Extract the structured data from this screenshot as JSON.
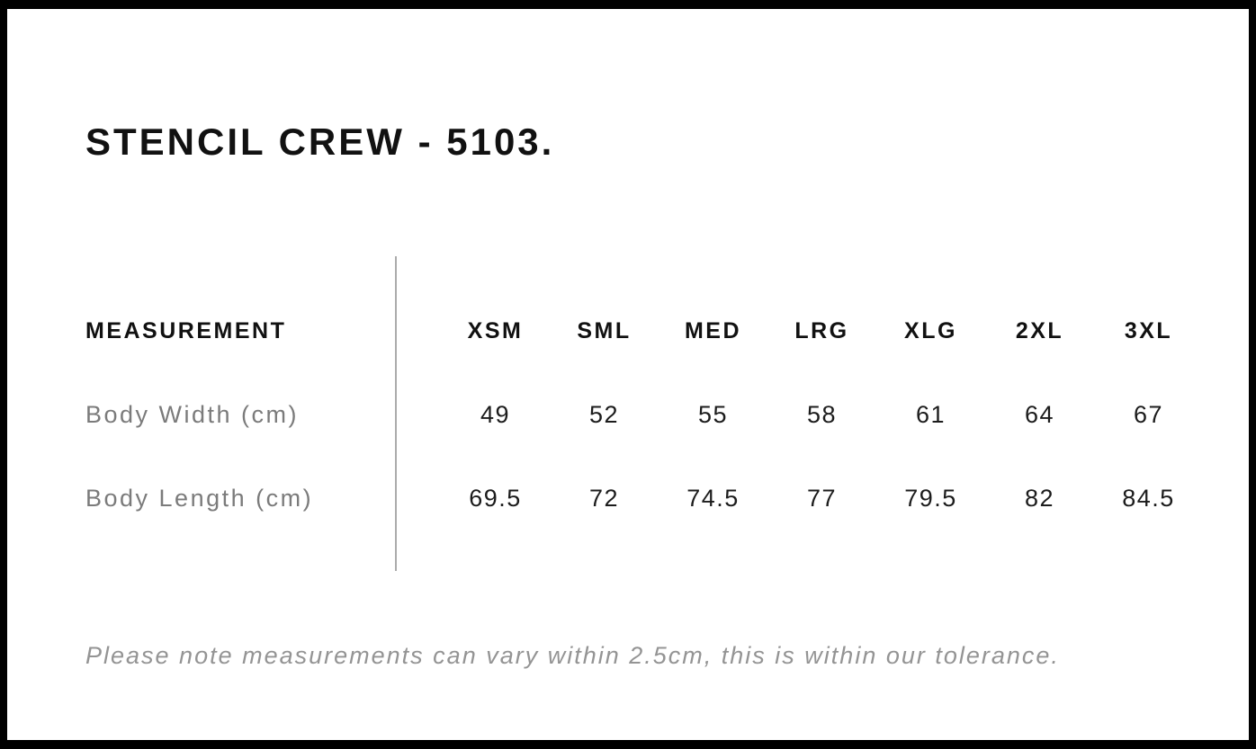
{
  "page": {
    "title": "STENCIL CREW - 5103.",
    "note": "Please note measurements can vary within 2.5cm, this is within our tolerance."
  },
  "table": {
    "header_label": "MEASUREMENT",
    "sizes": [
      "XSM",
      "SML",
      "MED",
      "LRG",
      "XLG",
      "2XL",
      "3XL"
    ],
    "rows": [
      {
        "label": "Body Width (cm)",
        "values": [
          "49",
          "52",
          "55",
          "58",
          "61",
          "64",
          "67"
        ]
      },
      {
        "label": "Body Length (cm)",
        "values": [
          "69.5",
          "72",
          "74.5",
          "77",
          "79.5",
          "82",
          "84.5"
        ]
      }
    ]
  },
  "colors": {
    "frame": "#000000",
    "heading_text": "#111111",
    "value_text": "#1c1c1c",
    "row_label_text": "#7b7b7b",
    "note_text": "#949494",
    "divider": "#ababab",
    "background": "#ffffff"
  }
}
